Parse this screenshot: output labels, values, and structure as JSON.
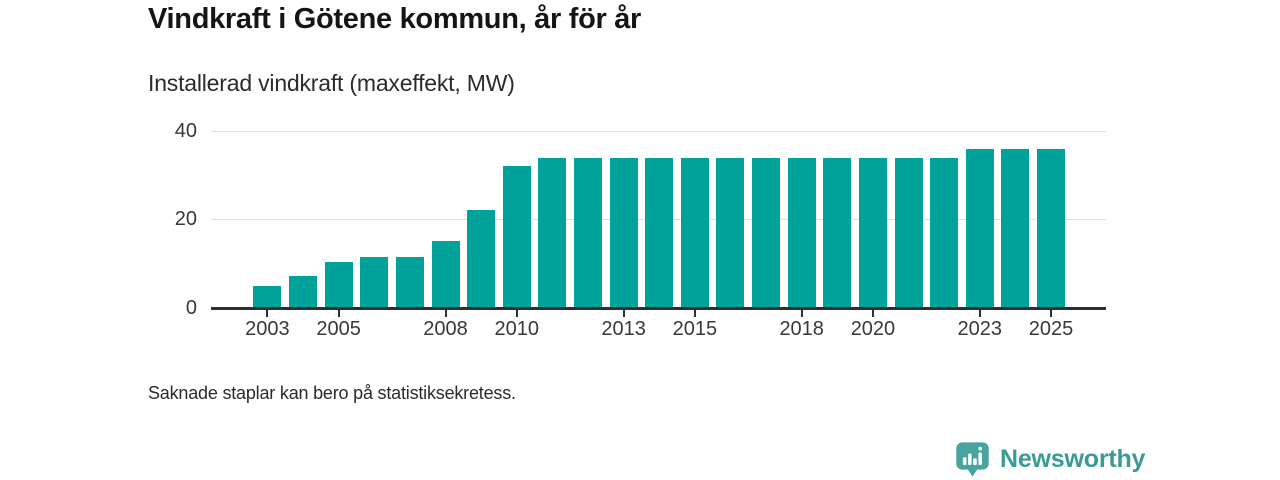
{
  "chart_data": {
    "type": "bar",
    "title": "Vindkraft i Götene kommun, år för år",
    "subtitle": "Installerad vindkraft (maxeffekt, MW)",
    "categories": [
      2003,
      2004,
      2005,
      2006,
      2007,
      2008,
      2009,
      2010,
      2011,
      2012,
      2013,
      2014,
      2015,
      2016,
      2017,
      2018,
      2019,
      2020,
      2021,
      2022,
      2023,
      2024,
      2025
    ],
    "values": [
      4.9,
      7.2,
      10.4,
      11.6,
      11.6,
      15.1,
      22,
      32,
      33.9,
      33.9,
      33.9,
      33.9,
      33.9,
      33.9,
      33.9,
      33.9,
      33.9,
      33.9,
      33.9,
      33.9,
      35.8,
      35.8,
      35.8
    ],
    "unit": "MW",
    "ylabel": "",
    "xlabel": "",
    "ylim": [
      0,
      40
    ],
    "yticks": [
      0,
      20,
      40
    ],
    "xticks": [
      2003,
      2005,
      2008,
      2010,
      2013,
      2015,
      2018,
      2020,
      2023,
      2025
    ],
    "grid": "horizontal",
    "legend": "none",
    "bar_color": "#00a29a"
  },
  "footer": {
    "note": "Saknade staplar kan bero på statistiksekretess."
  },
  "branding": {
    "name": "Newsworthy",
    "logo_icon": "speech-bubble-bar-chart-with-exclamation",
    "wordmark_color": "#3a9a94",
    "icon_color": "#48a49e"
  }
}
